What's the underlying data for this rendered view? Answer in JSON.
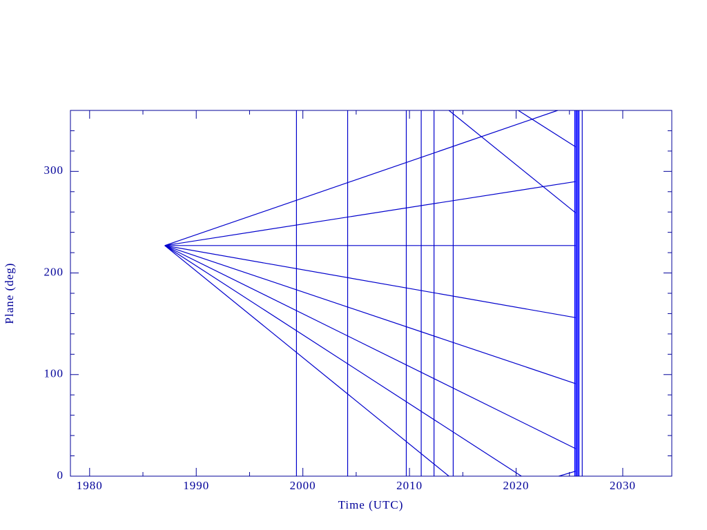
{
  "chart_data": {
    "type": "line",
    "xlabel": "Time (UTC)",
    "ylabel": "Plane (deg)",
    "xlim": [
      1978.2,
      2034.6
    ],
    "ylim": [
      0,
      360
    ],
    "xticks": [
      1980,
      1990,
      2000,
      2010,
      2020,
      2030
    ],
    "yticks": [
      0,
      100,
      200,
      300
    ],
    "xminorticks": [
      1985,
      1995,
      2005,
      2015,
      2025
    ],
    "yminorticks": [
      20,
      40,
      60,
      80,
      120,
      140,
      160,
      180,
      220,
      240,
      260,
      280,
      320,
      340
    ],
    "axis_color": "#000099",
    "series": [
      {
        "color": "#0000cc",
        "x": [
          1987.05,
          2023.9
        ],
        "values": [
          227,
          360
        ]
      },
      {
        "color": "#0000cc",
        "x": [
          1987.05,
          2025.6
        ],
        "values": [
          227,
          290
        ]
      },
      {
        "color": "#0000cc",
        "x": [
          1987.05,
          2025.6
        ],
        "values": [
          227,
          227
        ]
      },
      {
        "color": "#0000cc",
        "x": [
          1987.05,
          2025.6
        ],
        "values": [
          227,
          156
        ]
      },
      {
        "color": "#0000cc",
        "x": [
          1987.05,
          2025.6
        ],
        "values": [
          227,
          91
        ]
      },
      {
        "color": "#0000cc",
        "x": [
          1987.05,
          2025.6
        ],
        "values": [
          227,
          27
        ]
      },
      {
        "color": "#0000cc",
        "x": [
          1987.05,
          2013.7
        ],
        "values": [
          227,
          0
        ]
      },
      {
        "color": "#0000cc",
        "x": [
          1987.05,
          2020.5
        ],
        "values": [
          227,
          0
        ]
      },
      {
        "color": "#0000cc",
        "x": [
          2020.2,
          2025.6
        ],
        "values": [
          360,
          324
        ]
      },
      {
        "color": "#0000cc",
        "x": [
          2013.7,
          2025.6
        ],
        "values": [
          360,
          259
        ]
      },
      {
        "color": "#0000cc",
        "x": [
          2024.0,
          2025.6
        ],
        "values": [
          0,
          5
        ]
      },
      {
        "color": "#0000cc",
        "x": [
          1999.4,
          1999.4
        ],
        "values": [
          0,
          360
        ]
      },
      {
        "color": "#0000cc",
        "x": [
          2004.2,
          2004.2
        ],
        "values": [
          0,
          360
        ]
      },
      {
        "color": "#0000cc",
        "x": [
          2009.7,
          2009.7
        ],
        "values": [
          0,
          360
        ]
      },
      {
        "color": "#0000cc",
        "x": [
          2011.1,
          2011.1
        ],
        "values": [
          0,
          360
        ]
      },
      {
        "color": "#0000cc",
        "x": [
          2012.3,
          2012.3
        ],
        "values": [
          0,
          360
        ]
      },
      {
        "color": "#0000cc",
        "x": [
          2014.1,
          2014.1
        ],
        "values": [
          0,
          360
        ]
      },
      {
        "color": "#0000ff",
        "x": [
          2025.5,
          2025.5
        ],
        "values": [
          0,
          360
        ]
      },
      {
        "color": "#0000ff",
        "x": [
          2025.6,
          2025.6
        ],
        "values": [
          0,
          360
        ]
      },
      {
        "color": "#0000ff",
        "x": [
          2025.7,
          2025.7
        ],
        "values": [
          0,
          360
        ]
      },
      {
        "color": "#0000ff",
        "x": [
          2025.8,
          2025.8
        ],
        "values": [
          0,
          360
        ]
      },
      {
        "color": "#0000ff",
        "x": [
          2025.9,
          2025.9
        ],
        "values": [
          0,
          360
        ]
      },
      {
        "color": "#0000cc",
        "x": [
          2026.2,
          2026.2
        ],
        "values": [
          0,
          360
        ]
      }
    ]
  }
}
